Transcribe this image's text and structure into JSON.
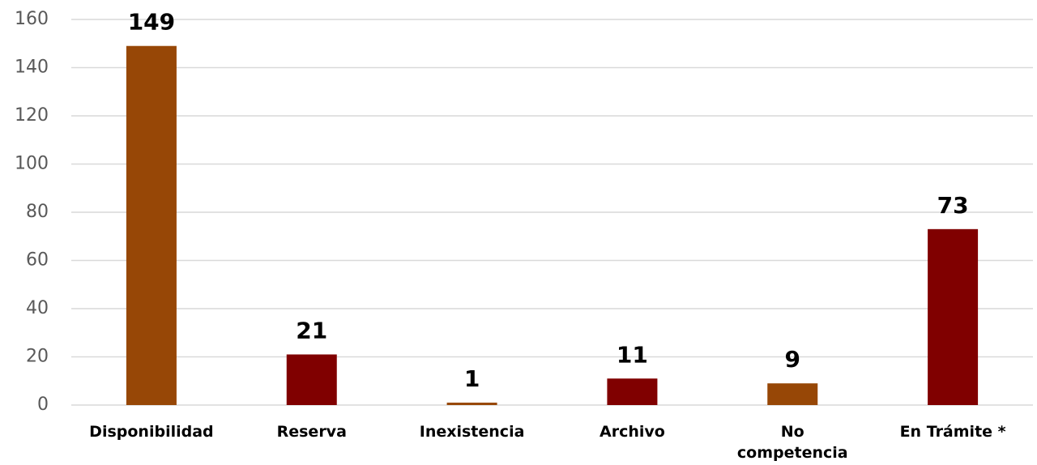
{
  "chart_data": {
    "type": "bar",
    "categories": [
      "Disponibilidad",
      "Reserva",
      "Inexistencia",
      "Archivo",
      "No competencia",
      "En Trámite *"
    ],
    "values": [
      149,
      21,
      1,
      11,
      9,
      73
    ],
    "colors": [
      "#974706",
      "#800000",
      "#974706",
      "#800000",
      "#974706",
      "#800000"
    ],
    "ylim": [
      0,
      160
    ],
    "yticks": [
      0,
      20,
      40,
      60,
      80,
      100,
      120,
      140,
      160
    ],
    "grid": true
  }
}
